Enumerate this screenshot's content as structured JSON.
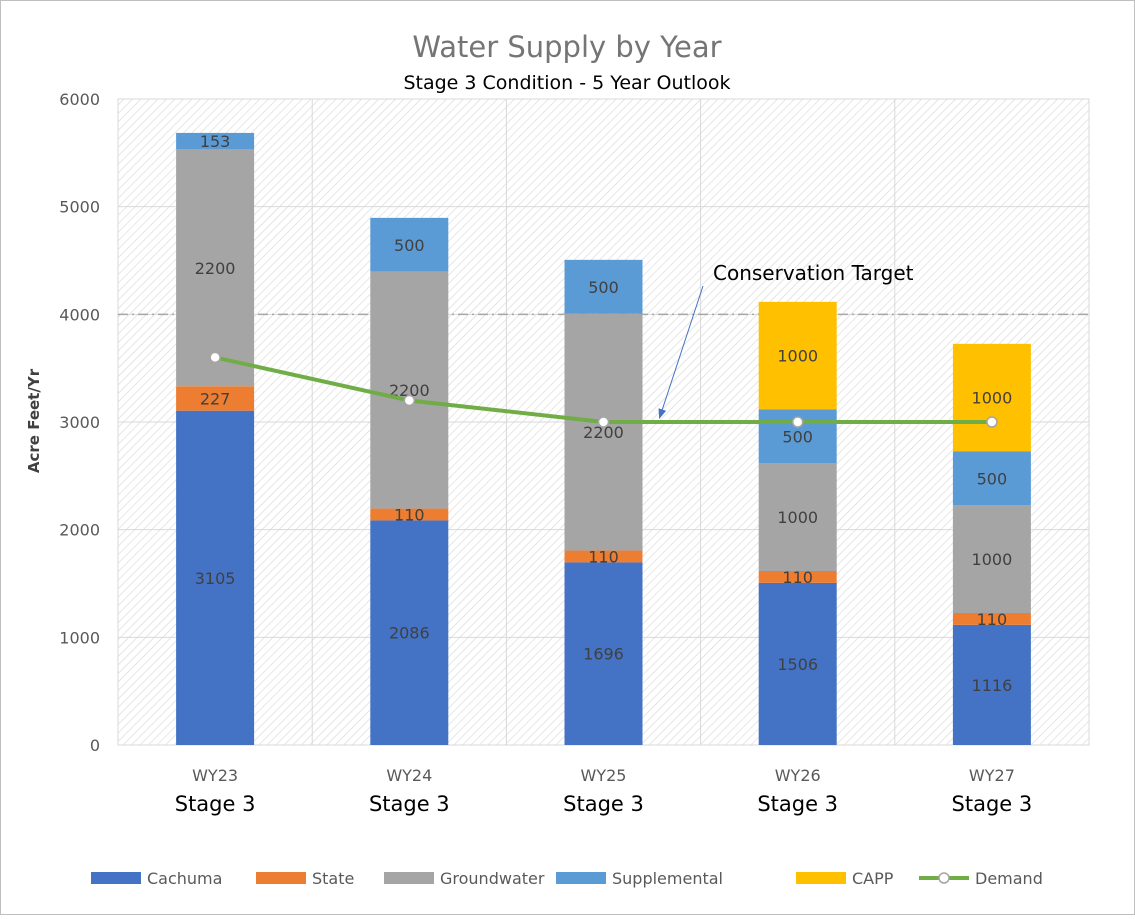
{
  "chart_data": {
    "type": "bar",
    "stacked": true,
    "title": "Water Supply by Year",
    "subtitle": "Stage 3 Condition - 5 Year Outlook",
    "xlabel": "",
    "ylabel": "Acre Feet/Yr",
    "ylim": [
      0,
      6000
    ],
    "yticks": [
      0,
      1000,
      2000,
      3000,
      4000,
      5000,
      6000
    ],
    "grid": true,
    "categories": [
      "WY23",
      "WY24",
      "WY25",
      "WY26",
      "WY27"
    ],
    "category_sublabels": [
      "Stage 3",
      "Stage 3",
      "Stage 3",
      "Stage 3",
      "Stage 3"
    ],
    "series": [
      {
        "name": "Cachuma",
        "color": "#4472c4",
        "values": [
          3105,
          2086,
          1696,
          1506,
          1116
        ],
        "label_color": "#404040"
      },
      {
        "name": "State",
        "color": "#ed7d31",
        "values": [
          227,
          110,
          110,
          110,
          110
        ],
        "label_color": "#404040"
      },
      {
        "name": "Groundwater",
        "color": "#a5a5a5",
        "values": [
          2200,
          2200,
          2200,
          1000,
          1000
        ],
        "label_color": "#404040"
      },
      {
        "name": "Supplemental",
        "color": "#5b9bd5",
        "values": [
          153,
          500,
          500,
          500,
          500
        ],
        "label_color": "#404040"
      },
      {
        "name": "CAPP",
        "color": "#ffc000",
        "values": [
          0,
          0,
          0,
          1000,
          1000
        ],
        "label_color": "#404040"
      }
    ],
    "line_series": {
      "name": "Demand",
      "type": "line",
      "color": "#70ad47",
      "values": [
        3600,
        3200,
        3000,
        3000,
        3000
      ]
    },
    "reference_line": {
      "value": 4000,
      "style": "dash-dot",
      "color": "#a6a6a6"
    },
    "annotation": {
      "text": "Conservation Target",
      "points_to_category": "WY25",
      "points_to_value": 3000,
      "arrow_color": "#4472c4"
    },
    "legend_placement": "bottom"
  }
}
